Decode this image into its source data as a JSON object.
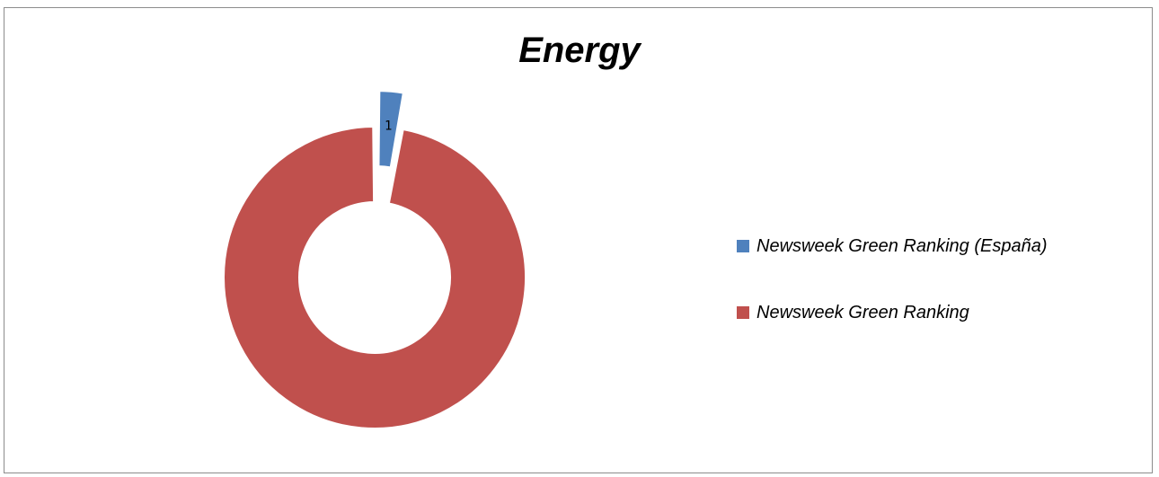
{
  "chart_data": {
    "type": "pie",
    "title": "Energy",
    "categories": [
      "Newsweek Green Ranking (España)",
      "Newsweek Green Ranking"
    ],
    "values": [
      1,
      34
    ],
    "data_labels": [
      "1",
      ""
    ],
    "colors": [
      "#4f81bd",
      "#c0504d"
    ],
    "legend_position": "right"
  }
}
